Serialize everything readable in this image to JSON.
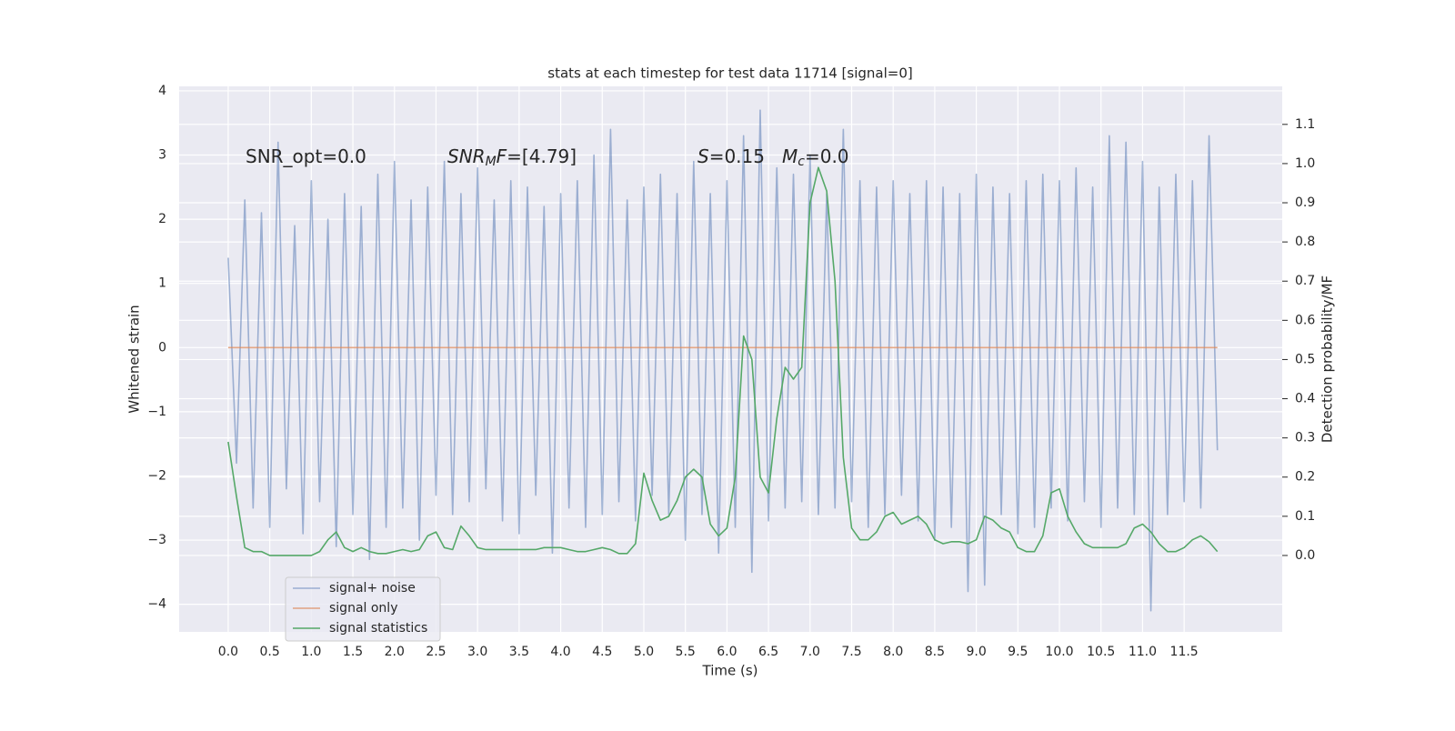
{
  "chart_data": {
    "type": "line",
    "title": "stats at each timestep for test data 11714 [signal=0]",
    "xlabel": "Time (s)",
    "ylabel": "Whitened strain",
    "y2label": "Detection probability/MF",
    "annotations": [
      [
        {
          "text": "SNR_opt=0.0"
        }
      ],
      [
        {
          "text": "SNR",
          "style": "italic"
        },
        {
          "text": "M",
          "style": "italic-sub"
        },
        {
          "text": "F",
          "style": "italic"
        },
        {
          "text": "=[4.79]"
        }
      ],
      [
        {
          "text": "S",
          "style": "italic"
        },
        {
          "text": "=0.15"
        }
      ],
      [
        {
          "text": "M",
          "style": "italic"
        },
        {
          "text": "c",
          "style": "italic-sub"
        },
        {
          "text": "=0.0"
        }
      ]
    ],
    "x": [
      0,
      0.1,
      0.2,
      0.3,
      0.4,
      0.5,
      0.6,
      0.7,
      0.8,
      0.9,
      1.0,
      1.1,
      1.2,
      1.3,
      1.4,
      1.5,
      1.6,
      1.7,
      1.8,
      1.9,
      2.0,
      2.1,
      2.2,
      2.3,
      2.4,
      2.5,
      2.6,
      2.7,
      2.8,
      2.9,
      3.0,
      3.1,
      3.2,
      3.3,
      3.4,
      3.5,
      3.6,
      3.7,
      3.8,
      3.9,
      4.0,
      4.1,
      4.2,
      4.3,
      4.4,
      4.5,
      4.6,
      4.7,
      4.8,
      4.9,
      5.0,
      5.1,
      5.2,
      5.3,
      5.4,
      5.5,
      5.6,
      5.7,
      5.8,
      5.9,
      6.0,
      6.1,
      6.2,
      6.3,
      6.4,
      6.5,
      6.6,
      6.7,
      6.8,
      6.9,
      7.0,
      7.1,
      7.2,
      7.3,
      7.4,
      7.5,
      7.6,
      7.7,
      7.8,
      7.9,
      8.0,
      8.1,
      8.2,
      8.3,
      8.4,
      8.5,
      8.6,
      8.7,
      8.8,
      8.9,
      9.0,
      9.1,
      9.2,
      9.3,
      9.4,
      9.5,
      9.6,
      9.7,
      9.8,
      9.9,
      10.0,
      10.1,
      10.2,
      10.3,
      10.4,
      10.5,
      10.6,
      10.7,
      10.8,
      10.9,
      11.0,
      11.1,
      11.2,
      11.3,
      11.4,
      11.5,
      11.6,
      11.7,
      11.8,
      11.9
    ],
    "series": [
      {
        "name": "signal+ noise",
        "color": "#4c72b0",
        "opacity": 0.5,
        "values": [
          1.4,
          -1.8,
          2.3,
          -2.5,
          2.1,
          -2.8,
          3.2,
          -2.2,
          1.9,
          -2.9,
          2.6,
          -2.4,
          2.0,
          -3.1,
          2.4,
          -2.6,
          2.2,
          -3.3,
          2.7,
          -2.8,
          2.9,
          -2.5,
          2.3,
          -3.0,
          2.5,
          -2.3,
          2.9,
          -2.6,
          2.4,
          -2.4,
          2.8,
          -2.2,
          2.3,
          -2.7,
          2.6,
          -2.9,
          2.5,
          -2.3,
          2.2,
          -3.2,
          2.4,
          -2.5,
          2.6,
          -2.8,
          3.0,
          -2.6,
          3.4,
          -2.4,
          2.3,
          -2.7,
          2.5,
          -2.3,
          2.7,
          -2.6,
          2.4,
          -3.0,
          2.9,
          -2.6,
          2.4,
          -3.2,
          2.6,
          -2.8,
          3.3,
          -3.5,
          3.7,
          -2.7,
          2.8,
          -2.5,
          2.7,
          -2.4,
          3.0,
          -2.6,
          2.4,
          -2.5,
          3.4,
          -2.4,
          2.6,
          -2.8,
          2.5,
          -2.6,
          2.6,
          -2.3,
          2.4,
          -2.7,
          2.6,
          -3.0,
          2.5,
          -2.8,
          2.4,
          -3.8,
          2.7,
          -3.7,
          2.5,
          -2.6,
          2.4,
          -2.9,
          2.6,
          -2.8,
          2.7,
          -2.5,
          2.6,
          -2.7,
          2.8,
          -2.4,
          2.5,
          -2.8,
          3.3,
          -2.5,
          3.2,
          -2.6,
          2.9,
          -4.1,
          2.5,
          -2.6,
          2.7,
          -2.4,
          2.6,
          -2.5,
          3.3,
          -1.6
        ]
      },
      {
        "name": "signal only",
        "color": "#dd8452",
        "opacity": 0.7,
        "values": [
          0,
          0,
          0,
          0,
          0,
          0,
          0,
          0,
          0,
          0,
          0,
          0,
          0,
          0,
          0,
          0,
          0,
          0,
          0,
          0,
          0,
          0,
          0,
          0,
          0,
          0,
          0,
          0,
          0,
          0,
          0,
          0,
          0,
          0,
          0,
          0,
          0,
          0,
          0,
          0,
          0,
          0,
          0,
          0,
          0,
          0,
          0,
          0,
          0,
          0,
          0,
          0,
          0,
          0,
          0,
          0,
          0,
          0,
          0,
          0,
          0,
          0,
          0,
          0,
          0,
          0,
          0,
          0,
          0,
          0,
          0,
          0,
          0,
          0,
          0,
          0,
          0,
          0,
          0,
          0,
          0,
          0,
          0,
          0,
          0,
          0,
          0,
          0,
          0,
          0,
          0,
          0,
          0,
          0,
          0,
          0,
          0,
          0,
          0,
          0,
          0,
          0,
          0,
          0,
          0,
          0,
          0,
          0,
          0,
          0,
          0,
          0,
          0,
          0,
          0,
          0,
          0,
          0,
          0,
          0
        ]
      },
      {
        "name": "signal statistics",
        "color": "#55a868",
        "opacity": 1,
        "axis": "y2",
        "values": [
          0.29,
          0.15,
          0.02,
          0.01,
          0.01,
          0.0,
          0.0,
          0.0,
          0.0,
          0.0,
          0.0,
          0.01,
          0.04,
          0.06,
          0.02,
          0.01,
          0.02,
          0.01,
          0.005,
          0.005,
          0.01,
          0.015,
          0.01,
          0.015,
          0.05,
          0.06,
          0.02,
          0.015,
          0.075,
          0.05,
          0.02,
          0.015,
          0.015,
          0.015,
          0.015,
          0.015,
          0.015,
          0.015,
          0.02,
          0.02,
          0.02,
          0.015,
          0.01,
          0.01,
          0.015,
          0.02,
          0.015,
          0.005,
          0.005,
          0.03,
          0.21,
          0.14,
          0.09,
          0.1,
          0.14,
          0.2,
          0.22,
          0.2,
          0.08,
          0.05,
          0.07,
          0.2,
          0.56,
          0.5,
          0.2,
          0.16,
          0.35,
          0.48,
          0.45,
          0.48,
          0.9,
          0.99,
          0.93,
          0.7,
          0.25,
          0.07,
          0.04,
          0.04,
          0.06,
          0.1,
          0.11,
          0.08,
          0.09,
          0.1,
          0.08,
          0.04,
          0.03,
          0.035,
          0.035,
          0.03,
          0.04,
          0.1,
          0.09,
          0.07,
          0.06,
          0.02,
          0.01,
          0.01,
          0.05,
          0.16,
          0.17,
          0.1,
          0.06,
          0.03,
          0.02,
          0.02,
          0.02,
          0.02,
          0.03,
          0.07,
          0.08,
          0.06,
          0.03,
          0.01,
          0.01,
          0.02,
          0.04,
          0.05,
          0.035,
          0.01
        ]
      }
    ],
    "xlim": [
      -0.59,
      12.68
    ],
    "ylim": [
      -4.43,
      4.07
    ],
    "y2lim": [
      -0.195,
      1.197
    ],
    "xticks": [
      {
        "value": 0,
        "label": "0.0"
      },
      {
        "value": 0.5,
        "label": "0.5"
      },
      {
        "value": 1,
        "label": "1.0"
      },
      {
        "value": 1.5,
        "label": "1.5"
      },
      {
        "value": 2,
        "label": "2.0"
      },
      {
        "value": 2.5,
        "label": "2.5"
      },
      {
        "value": 3,
        "label": "3.0"
      },
      {
        "value": 3.5,
        "label": "3.5"
      },
      {
        "value": 4,
        "label": "4.0"
      },
      {
        "value": 4.5,
        "label": "4.5"
      },
      {
        "value": 5,
        "label": "5.0"
      },
      {
        "value": 5.5,
        "label": "5.5"
      },
      {
        "value": 6,
        "label": "6.0"
      },
      {
        "value": 6.5,
        "label": "6.5"
      },
      {
        "value": 7,
        "label": "7.0"
      },
      {
        "value": 7.5,
        "label": "7.5"
      },
      {
        "value": 8,
        "label": "8.0"
      },
      {
        "value": 8.5,
        "label": "8.5"
      },
      {
        "value": 9,
        "label": "9.0"
      },
      {
        "value": 9.5,
        "label": "9.5"
      },
      {
        "value": 10,
        "label": "10.0"
      },
      {
        "value": 10.5,
        "label": "10.5"
      },
      {
        "value": 11,
        "label": "11.0"
      },
      {
        "value": 11.5,
        "label": "11.5"
      }
    ],
    "yticks": [
      {
        "value": -4,
        "label": "−4"
      },
      {
        "value": -3,
        "label": "−3"
      },
      {
        "value": -2,
        "label": "−2"
      },
      {
        "value": -1,
        "label": "−1"
      },
      0,
      1,
      2,
      3,
      4
    ],
    "y2ticks": [
      {
        "value": 0,
        "label": "0.0"
      },
      {
        "value": 0.1,
        "label": "0.1"
      },
      {
        "value": 0.2,
        "label": "0.2"
      },
      {
        "value": 0.3,
        "label": "0.3"
      },
      {
        "value": 0.4,
        "label": "0.4"
      },
      {
        "value": 0.5,
        "label": "0.5"
      },
      {
        "value": 0.6,
        "label": "0.6"
      },
      {
        "value": 0.7,
        "label": "0.7"
      },
      {
        "value": 0.8,
        "label": "0.8"
      },
      {
        "value": 0.9,
        "label": "0.9"
      },
      {
        "value": 1.0,
        "label": "1.0"
      },
      {
        "value": 1.1,
        "label": "1.1"
      }
    ],
    "grid": true,
    "background": "#eaeaf2",
    "legend": "lower left"
  }
}
